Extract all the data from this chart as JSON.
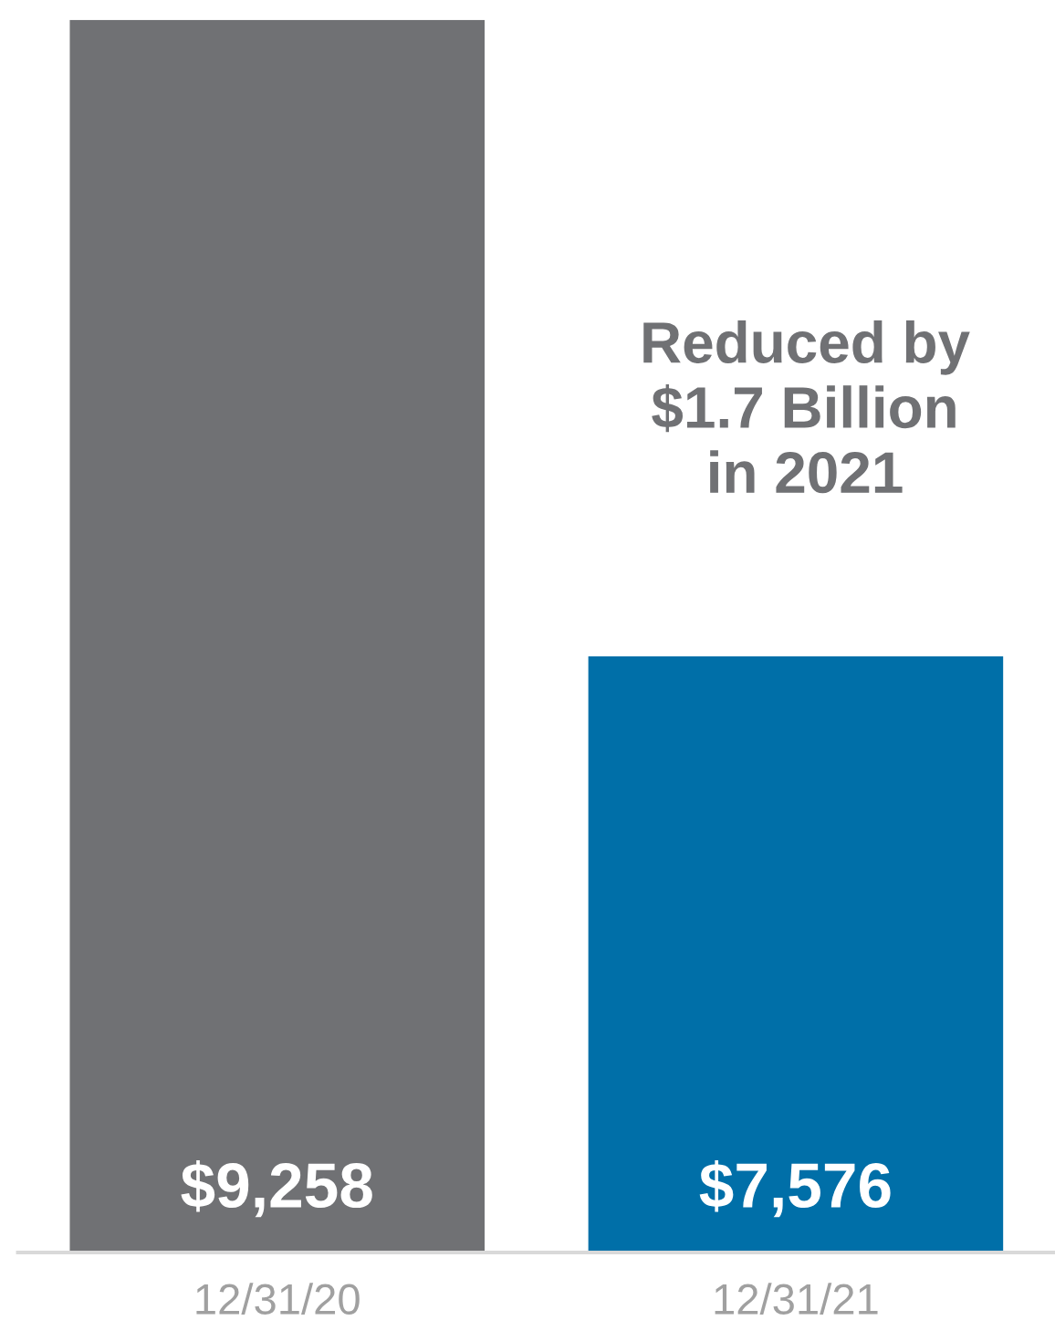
{
  "chart_data": {
    "type": "bar",
    "categories": [
      "12/31/20",
      "12/31/21"
    ],
    "values": [
      9258,
      7576
    ],
    "colors": [
      "#707174",
      "#006fa8"
    ],
    "value_labels": [
      "$9,258",
      "$7,576"
    ],
    "ylim": [
      6000,
      9258
    ],
    "tick_labels": "x",
    "grid": false,
    "legend": false,
    "annotations": [
      "Reduced by\n$1.7 Billion\nin 2021"
    ]
  }
}
